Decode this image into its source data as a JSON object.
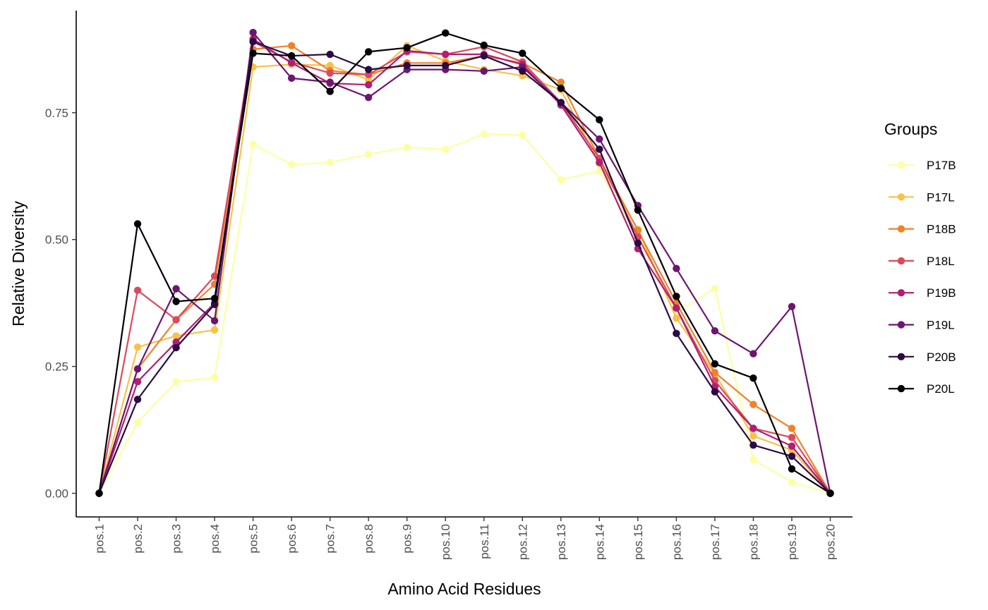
{
  "chart_data": {
    "type": "line",
    "title": "",
    "xlabel": "Amino Acid Residues",
    "ylabel": "Relative Diversity",
    "x": [
      "pos.1",
      "pos.2",
      "pos.3",
      "pos.4",
      "pos.5",
      "pos.6",
      "pos.7",
      "pos.8",
      "pos.9",
      "pos.10",
      "pos.11",
      "pos.12",
      "pos.13",
      "pos.14",
      "pos.15",
      "pos.16",
      "pos.17",
      "pos.18",
      "pos.19",
      "pos.20"
    ],
    "ylim": [
      -0.046,
      0.955
    ],
    "yticks": [
      0.0,
      0.25,
      0.5,
      0.75
    ],
    "ytick_labels": [
      "0.00",
      "0.25",
      "0.50",
      "0.75"
    ],
    "grid": false,
    "legend": {
      "title": "Groups",
      "position": "right"
    },
    "series": [
      {
        "name": "P17B",
        "color": "#FCFFA4",
        "values": [
          0.0,
          0.14,
          0.22,
          0.228,
          0.688,
          0.648,
          0.652,
          0.668,
          0.682,
          0.678,
          0.708,
          0.706,
          0.618,
          0.635,
          0.505,
          0.355,
          0.404,
          0.066,
          0.022,
          0.0
        ]
      },
      {
        "name": "P17L",
        "color": "#F6C24A",
        "values": [
          0.0,
          0.288,
          0.31,
          0.322,
          0.84,
          0.845,
          0.843,
          0.815,
          0.882,
          0.852,
          0.835,
          0.823,
          0.795,
          0.65,
          0.52,
          0.345,
          0.235,
          0.113,
          0.085,
          0.0
        ]
      },
      {
        "name": "P18B",
        "color": "#F0822A",
        "values": [
          0.0,
          0.245,
          0.342,
          0.412,
          0.875,
          0.882,
          0.833,
          0.825,
          0.848,
          0.848,
          0.862,
          0.848,
          0.81,
          0.66,
          0.518,
          0.375,
          0.238,
          0.175,
          0.128,
          0.0
        ]
      },
      {
        "name": "P18L",
        "color": "#DB4A5C",
        "values": [
          0.0,
          0.4,
          0.342,
          0.428,
          0.89,
          0.85,
          0.828,
          0.825,
          0.87,
          0.865,
          0.88,
          0.85,
          0.77,
          0.66,
          0.505,
          0.365,
          0.222,
          0.128,
          0.11,
          0.0
        ]
      },
      {
        "name": "P19B",
        "color": "#B01F74",
        "values": [
          0.0,
          0.22,
          0.298,
          0.375,
          0.895,
          0.848,
          0.808,
          0.805,
          0.872,
          0.865,
          0.865,
          0.845,
          0.765,
          0.652,
          0.482,
          0.365,
          0.21,
          0.128,
          0.093,
          0.0
        ]
      },
      {
        "name": "P19L",
        "color": "#6C1670",
        "values": [
          0.0,
          0.245,
          0.403,
          0.34,
          0.908,
          0.818,
          0.81,
          0.78,
          0.835,
          0.835,
          0.832,
          0.84,
          0.77,
          0.698,
          0.567,
          0.443,
          0.32,
          0.275,
          0.368,
          0.0
        ]
      },
      {
        "name": "P20B",
        "color": "#2A0B43",
        "values": [
          0.0,
          0.185,
          0.287,
          0.372,
          0.89,
          0.862,
          0.865,
          0.835,
          0.843,
          0.843,
          0.862,
          0.832,
          0.77,
          0.678,
          0.493,
          0.315,
          0.2,
          0.095,
          0.073,
          0.0
        ]
      },
      {
        "name": "P20L",
        "color": "#000004",
        "values": [
          0.0,
          0.531,
          0.378,
          0.384,
          0.867,
          0.862,
          0.792,
          0.87,
          0.878,
          0.907,
          0.883,
          0.867,
          0.798,
          0.736,
          0.558,
          0.388,
          0.255,
          0.227,
          0.048,
          0.0
        ]
      }
    ]
  }
}
